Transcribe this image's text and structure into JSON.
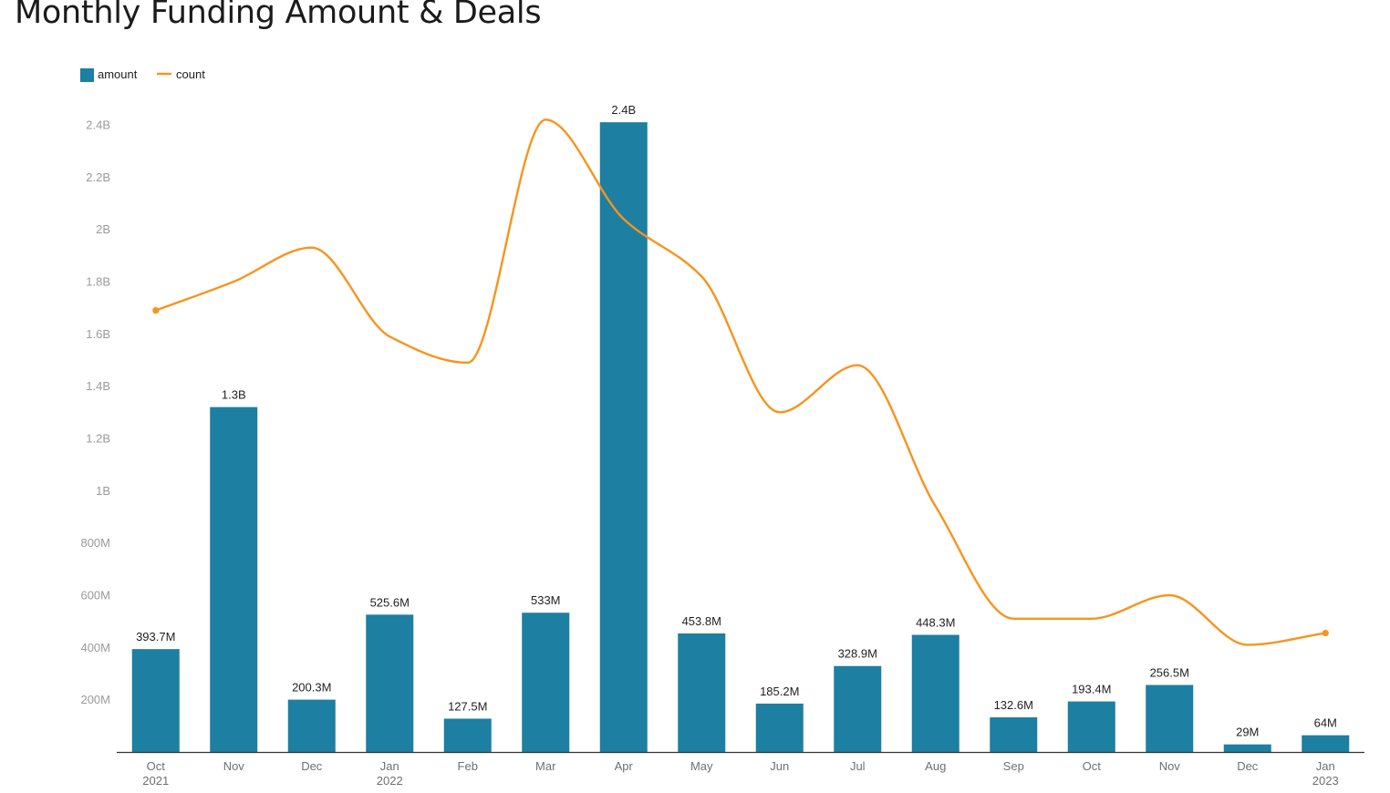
{
  "chart_data": {
    "type": "bar",
    "title": "Monthly Funding Amount & Deals",
    "categories": [
      [
        "Oct",
        "2021"
      ],
      [
        "Nov",
        ""
      ],
      [
        "Dec",
        ""
      ],
      [
        "Jan",
        "2022"
      ],
      [
        "Feb",
        ""
      ],
      [
        "Mar",
        ""
      ],
      [
        "Apr",
        ""
      ],
      [
        "May",
        ""
      ],
      [
        "Jun",
        ""
      ],
      [
        "Jul",
        ""
      ],
      [
        "Aug",
        ""
      ],
      [
        "Sep",
        ""
      ],
      [
        "Oct",
        ""
      ],
      [
        "Nov",
        ""
      ],
      [
        "Dec",
        ""
      ],
      [
        "Jan",
        "2023"
      ]
    ],
    "series": [
      {
        "name": "amount",
        "type": "bar",
        "color": "#1d7fa1",
        "values": [
          393700000,
          1320000000,
          200300000,
          525600000,
          127500000,
          533000000,
          2410000000,
          453800000,
          185200000,
          328900000,
          448300000,
          132600000,
          193400000,
          256500000,
          29000000,
          64000000
        ],
        "labels": [
          "393.7M",
          "1.3B",
          "200.3M",
          "525.6M",
          "127.5M",
          "533M",
          "2.4B",
          "453.8M",
          "185.2M",
          "328.9M",
          "448.3M",
          "132.6M",
          "193.4M",
          "256.5M",
          "29M",
          "64M"
        ]
      },
      {
        "name": "count",
        "type": "line",
        "smooth": true,
        "color": "#f7941d",
        "values": [
          1690000000,
          1800000000,
          1930000000,
          1590000000,
          1490000000,
          2420000000,
          2040000000,
          1820000000,
          1300000000,
          1480000000,
          940000000,
          510000000,
          510000000,
          600000000,
          410000000,
          455000000
        ]
      }
    ],
    "ylim": [
      0,
      2400000000
    ],
    "yticks": [
      200000000,
      400000000,
      600000000,
      800000000,
      1000000000,
      1200000000,
      1400000000,
      1600000000,
      1800000000,
      2000000000,
      2200000000,
      2400000000
    ],
    "ytick_labels": [
      "200M",
      "400M",
      "600M",
      "800M",
      "1B",
      "1.2B",
      "1.4B",
      "1.6B",
      "1.8B",
      "2B",
      "2.2B",
      "2.4B"
    ],
    "grid": false,
    "legend": "top-left",
    "xlabel": "",
    "ylabel": ""
  }
}
